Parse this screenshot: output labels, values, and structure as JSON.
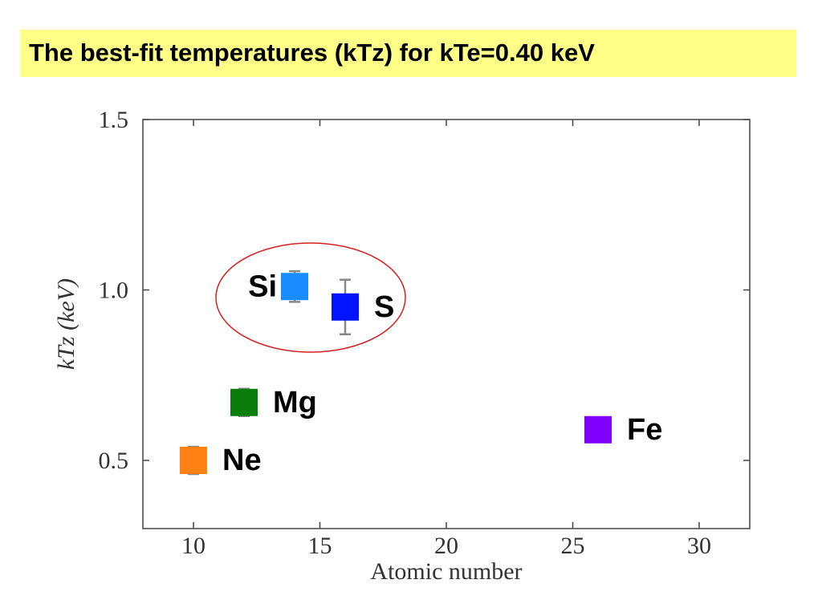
{
  "chart_data": {
    "type": "scatter",
    "title": "The best-fit temperatures (kTz) for  kTe=0.40 keV",
    "x_label": "Atomic number",
    "y_label": "kTz (keV)",
    "xlim": [
      8,
      32
    ],
    "ylim": [
      0.3,
      1.5
    ],
    "xticks": [
      10,
      15,
      20,
      25,
      30
    ],
    "yticks": [
      0.5,
      {
        "value": 1,
        "label": "1.0"
      },
      1.5
    ],
    "series": [
      {
        "name": "Ne",
        "color": "#ff8013",
        "x": [
          10
        ],
        "y": [
          0.5
        ],
        "error": [
          0.04
        ]
      },
      {
        "name": "Mg",
        "color": "#0b7d0b",
        "x": [
          12
        ],
        "y": [
          0.67
        ],
        "error": [
          0.04
        ]
      },
      {
        "name": "Si",
        "color": "#1a8cff",
        "x": [
          14
        ],
        "y": [
          1.01
        ],
        "error": [
          0.045
        ]
      },
      {
        "name": "S",
        "color": "#0014ff",
        "x": [
          16
        ],
        "y": [
          0.95
        ],
        "error": [
          0.08
        ]
      },
      {
        "name": "Fe",
        "color": "#8000ff",
        "x": [
          26
        ],
        "y": [
          0.59
        ],
        "error": [
          0
        ]
      }
    ]
  }
}
